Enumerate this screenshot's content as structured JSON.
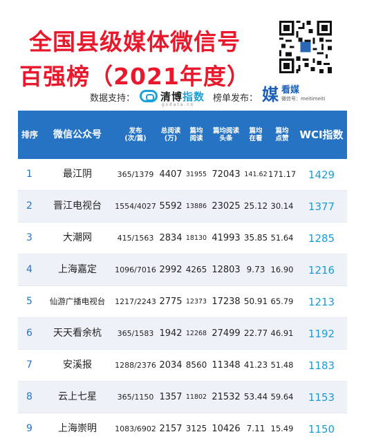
{
  "title": {
    "line1": "全国县级媒体微信号",
    "line2": "百强榜（2021年度）"
  },
  "credits": {
    "support_label": "数据支持：",
    "qingbo_name": "清博",
    "qingbo_name2": "指数",
    "qingbo_url": "gsdata.cn",
    "publish_label": "榜单发布：",
    "kanmei_name": "看媒",
    "kanmei_wechat": "微信号：meitimeiti"
  },
  "table": {
    "headers": {
      "rank": "排序",
      "account": "微信公众号",
      "posts": [
        "发布",
        "(次/篇)"
      ],
      "total_reads": [
        "总阅读",
        "(万)"
      ],
      "avg_reads": [
        "篇均",
        "阅读"
      ],
      "avg_head_reads": [
        "篇均阅读",
        "头条"
      ],
      "avg_looking": [
        "篇均",
        "在看"
      ],
      "avg_likes": [
        "篇均",
        "点赞"
      ],
      "wci": "WCI指数"
    },
    "rows": [
      {
        "rank": "1",
        "name": "最江阴",
        "posts": "365/1379",
        "total": "4407",
        "avg": "31955",
        "head": "72043",
        "looking": "141.62",
        "likes": "171.17",
        "wci": "1429"
      },
      {
        "rank": "2",
        "name": "晋江电视台",
        "posts": "1554/4027",
        "total": "5592",
        "avg": "13886",
        "head": "23025",
        "looking": "25.12",
        "likes": "30.14",
        "wci": "1377"
      },
      {
        "rank": "3",
        "name": "大潮网",
        "posts": "415/1563",
        "total": "2834",
        "avg": "18130",
        "head": "41993",
        "looking": "35.85",
        "likes": "51.64",
        "wci": "1285"
      },
      {
        "rank": "4",
        "name": "上海嘉定",
        "posts": "1096/7016",
        "total": "2992",
        "avg": "4265",
        "head": "12803",
        "looking": "9.73",
        "likes": "16.90",
        "wci": "1216"
      },
      {
        "rank": "5",
        "name": "仙游广播电视台",
        "posts": "1217/2243",
        "total": "2775",
        "avg": "12373",
        "head": "17238",
        "looking": "50.91",
        "likes": "65.79",
        "wci": "1213"
      },
      {
        "rank": "6",
        "name": "天天看余杭",
        "posts": "365/1583",
        "total": "1942",
        "avg": "12268",
        "head": "27499",
        "looking": "22.77",
        "likes": "46.91",
        "wci": "1192"
      },
      {
        "rank": "7",
        "name": "安溪报",
        "posts": "1288/2376",
        "total": "2034",
        "avg": "8560",
        "head": "11348",
        "looking": "41.23",
        "likes": "51.48",
        "wci": "1183"
      },
      {
        "rank": "8",
        "name": "云上七星",
        "posts": "365/1150",
        "total": "1357",
        "avg": "11802",
        "head": "21532",
        "looking": "53.44",
        "likes": "59.64",
        "wci": "1153"
      },
      {
        "rank": "9",
        "name": "上海崇明",
        "posts": "1083/6902",
        "total": "2157",
        "avg": "3125",
        "head": "10426",
        "looking": "7.11",
        "likes": "15.49",
        "wci": "1150"
      }
    ]
  }
}
